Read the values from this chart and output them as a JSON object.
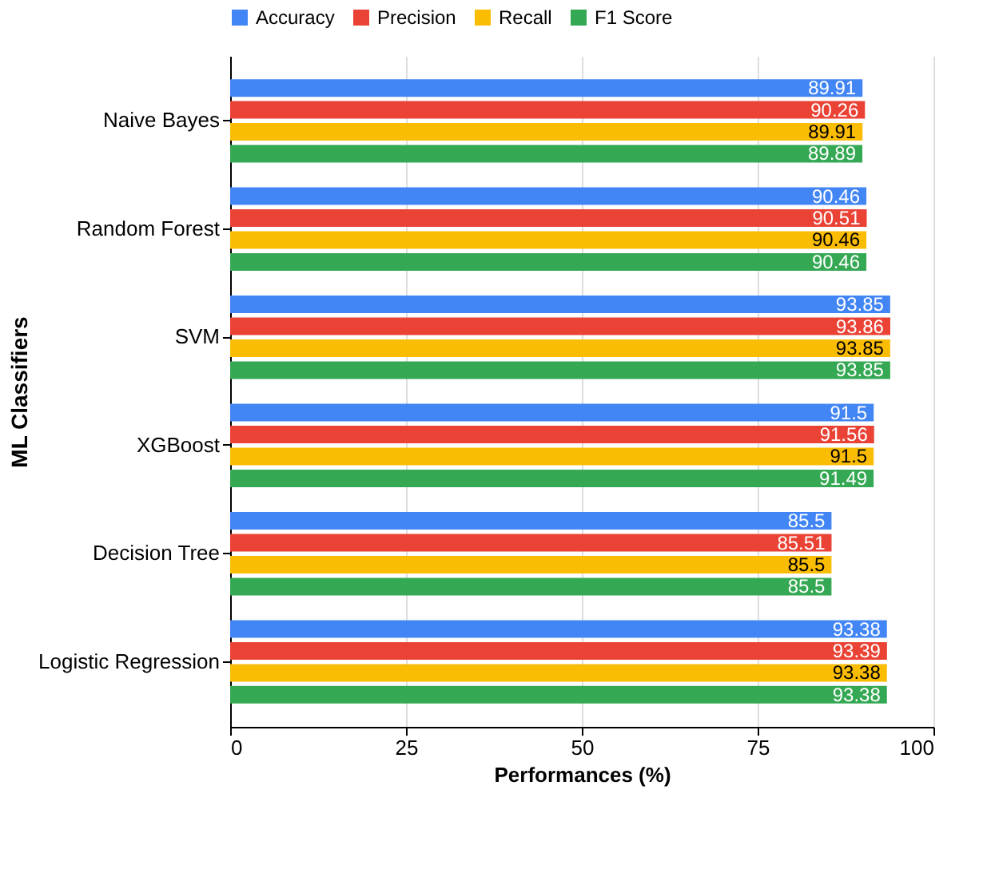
{
  "chart_data": {
    "type": "bar",
    "orientation": "horizontal",
    "xlabel": "Performances (%)",
    "ylabel": "ML Classifiers",
    "categories": [
      "Naive Bayes",
      "Random Forest",
      "SVM",
      "XGBoost",
      "Decision Tree",
      "Logistic Regression"
    ],
    "series": [
      {
        "name": "Accuracy",
        "color": "#4285f4",
        "values": [
          89.91,
          90.46,
          93.85,
          91.5,
          85.5,
          93.38
        ]
      },
      {
        "name": "Precision",
        "color": "#ea4335",
        "values": [
          90.26,
          90.51,
          93.86,
          91.56,
          85.51,
          93.39
        ]
      },
      {
        "name": "Recall",
        "color": "#fbbc04",
        "values": [
          89.91,
          90.46,
          93.85,
          91.5,
          85.5,
          93.38
        ]
      },
      {
        "name": "F1 Score",
        "color": "#34a853",
        "values": [
          89.89,
          90.46,
          93.85,
          91.49,
          85.5,
          93.38
        ]
      }
    ],
    "xlim": [
      0,
      100
    ],
    "xticks": [
      0,
      25,
      50,
      75,
      100
    ],
    "grid": "x",
    "legend": "top",
    "data_labels": true
  }
}
